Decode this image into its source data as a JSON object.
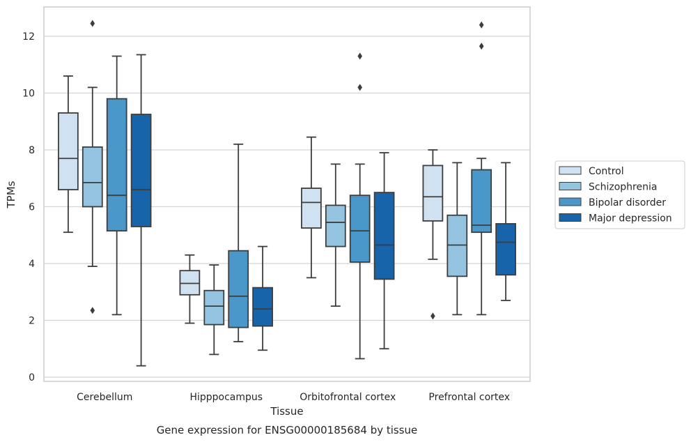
{
  "chart_data": {
    "type": "box",
    "title": "",
    "caption": "Gene expression for ENSG00000185684 by tissue",
    "xlabel": "Tissue",
    "ylabel": "TPMs",
    "ylim": [
      -0.25,
      13.0
    ],
    "yticks": [
      0,
      2,
      4,
      6,
      8,
      10,
      12
    ],
    "grid": "horizontal",
    "legend_position": "right",
    "categories": [
      "Cerebellum",
      "Hipppocampus",
      "Orbitofrontal cortex",
      "Prefrontal cortex"
    ],
    "series": [
      {
        "name": "Control",
        "color": "#d0e1f2",
        "boxes": [
          {
            "whislo": 5.1,
            "q1": 6.6,
            "med": 7.7,
            "q3": 9.3,
            "whishi": 10.6,
            "fliers": []
          },
          {
            "whislo": 1.9,
            "q1": 2.9,
            "med": 3.3,
            "q3": 3.75,
            "whishi": 4.3,
            "fliers": []
          },
          {
            "whislo": 3.5,
            "q1": 5.25,
            "med": 6.15,
            "q3": 6.65,
            "whishi": 8.45,
            "fliers": []
          },
          {
            "whislo": 4.15,
            "q1": 5.5,
            "med": 6.35,
            "q3": 7.45,
            "whishi": 8.0,
            "fliers": [
              2.15
            ]
          }
        ]
      },
      {
        "name": "Schizophrenia",
        "color": "#94c4df",
        "boxes": [
          {
            "whislo": 3.9,
            "q1": 6.0,
            "med": 6.85,
            "q3": 8.1,
            "whishi": 10.2,
            "fliers": [
              12.45,
              2.35
            ]
          },
          {
            "whislo": 0.8,
            "q1": 1.85,
            "med": 2.5,
            "q3": 3.05,
            "whishi": 3.95,
            "fliers": []
          },
          {
            "whislo": 2.5,
            "q1": 4.6,
            "med": 5.45,
            "q3": 6.05,
            "whishi": 7.5,
            "fliers": []
          },
          {
            "whislo": 2.2,
            "q1": 3.55,
            "med": 4.65,
            "q3": 5.7,
            "whishi": 7.55,
            "fliers": []
          }
        ]
      },
      {
        "name": "Bipolar disorder",
        "color": "#4a98c9",
        "boxes": [
          {
            "whislo": 2.2,
            "q1": 5.15,
            "med": 6.4,
            "q3": 9.8,
            "whishi": 11.3,
            "fliers": []
          },
          {
            "whislo": 1.25,
            "q1": 1.75,
            "med": 2.85,
            "q3": 4.45,
            "whishi": 8.2,
            "fliers": []
          },
          {
            "whislo": 0.65,
            "q1": 4.05,
            "med": 5.15,
            "q3": 6.4,
            "whishi": 7.5,
            "fliers": [
              11.3,
              10.2
            ]
          },
          {
            "whislo": 2.2,
            "q1": 5.1,
            "med": 5.35,
            "q3": 7.3,
            "whishi": 7.7,
            "fliers": [
              12.4,
              11.65
            ]
          }
        ]
      },
      {
        "name": "Major depression",
        "color": "#1764ab",
        "boxes": [
          {
            "whislo": 0.4,
            "q1": 5.3,
            "med": 6.6,
            "q3": 9.25,
            "whishi": 11.35,
            "fliers": []
          },
          {
            "whislo": 0.95,
            "q1": 1.8,
            "med": 2.4,
            "q3": 3.15,
            "whishi": 4.6,
            "fliers": []
          },
          {
            "whislo": 1.0,
            "q1": 3.45,
            "med": 4.65,
            "q3": 6.5,
            "whishi": 7.9,
            "fliers": []
          },
          {
            "whislo": 2.7,
            "q1": 3.6,
            "med": 4.75,
            "q3": 5.4,
            "whishi": 7.55,
            "fliers": []
          }
        ]
      }
    ]
  }
}
